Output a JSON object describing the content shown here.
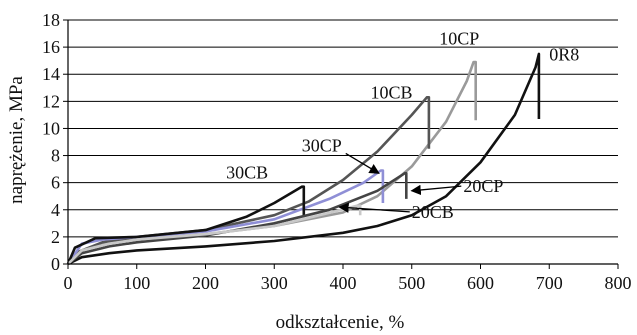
{
  "chart_data": {
    "type": "line",
    "xlabel": "odkształcenie, %",
    "ylabel": "naprężenie, MPa",
    "xlim": [
      0,
      800
    ],
    "ylim": [
      0,
      18
    ],
    "xticks": [
      0,
      100,
      200,
      300,
      400,
      500,
      600,
      700,
      800
    ],
    "yticks": [
      0,
      2,
      4,
      6,
      8,
      10,
      12,
      14,
      16,
      18
    ],
    "grid": "horizontal",
    "series": [
      {
        "name": "0R8",
        "color": "#111111",
        "points": [
          [
            0,
            0
          ],
          [
            20,
            0.5
          ],
          [
            60,
            0.8
          ],
          [
            100,
            1.0
          ],
          [
            200,
            1.3
          ],
          [
            300,
            1.7
          ],
          [
            400,
            2.3
          ],
          [
            450,
            2.8
          ],
          [
            500,
            3.6
          ],
          [
            550,
            5.0
          ],
          [
            600,
            7.5
          ],
          [
            650,
            11.0
          ],
          [
            680,
            14.5
          ],
          [
            685,
            15.5
          ],
          [
            685,
            10.7
          ]
        ]
      },
      {
        "name": "10CP",
        "color": "#9a9a9a",
        "points": [
          [
            0,
            0
          ],
          [
            15,
            0.9
          ],
          [
            50,
            1.5
          ],
          [
            100,
            1.8
          ],
          [
            200,
            2.2
          ],
          [
            300,
            2.8
          ],
          [
            400,
            3.8
          ],
          [
            450,
            5.0
          ],
          [
            500,
            7.2
          ],
          [
            550,
            10.5
          ],
          [
            580,
            13.5
          ],
          [
            590,
            14.9
          ],
          [
            593,
            14.9
          ],
          [
            593,
            10.6
          ]
        ]
      },
      {
        "name": "10CB",
        "color": "#555555",
        "points": [
          [
            0,
            0
          ],
          [
            15,
            0.9
          ],
          [
            50,
            1.6
          ],
          [
            100,
            2.0
          ],
          [
            200,
            2.5
          ],
          [
            300,
            3.6
          ],
          [
            350,
            4.6
          ],
          [
            400,
            6.2
          ],
          [
            450,
            8.3
          ],
          [
            500,
            11.0
          ],
          [
            522,
            12.3
          ],
          [
            525,
            12.3
          ],
          [
            525,
            8.5
          ]
        ]
      },
      {
        "name": "30CP",
        "color": "#8f8fd6",
        "points": [
          [
            0,
            0
          ],
          [
            20,
            1.5
          ],
          [
            50,
            1.8
          ],
          [
            100,
            2.0
          ],
          [
            200,
            2.4
          ],
          [
            300,
            3.3
          ],
          [
            380,
            4.8
          ],
          [
            430,
            6.0
          ],
          [
            455,
            6.9
          ],
          [
            458,
            6.9
          ],
          [
            458,
            4.5
          ]
        ]
      },
      {
        "name": "30CB",
        "color": "#111111",
        "points": [
          [
            0,
            0
          ],
          [
            10,
            1.2
          ],
          [
            40,
            1.9
          ],
          [
            100,
            2.0
          ],
          [
            200,
            2.5
          ],
          [
            260,
            3.5
          ],
          [
            300,
            4.5
          ],
          [
            340,
            5.7
          ],
          [
            343,
            5.7
          ],
          [
            343,
            3.6
          ]
        ]
      },
      {
        "name": "20CP",
        "color": "#444444",
        "points": [
          [
            0,
            0
          ],
          [
            20,
            0.8
          ],
          [
            60,
            1.3
          ],
          [
            100,
            1.6
          ],
          [
            200,
            2.1
          ],
          [
            300,
            3.0
          ],
          [
            380,
            4.0
          ],
          [
            450,
            5.4
          ],
          [
            490,
            6.7
          ],
          [
            492,
            6.7
          ],
          [
            492,
            4.8
          ]
        ]
      },
      {
        "name": "20CB",
        "color": "#c8c8c8",
        "points": [
          [
            0,
            0
          ],
          [
            20,
            1.0
          ],
          [
            60,
            1.5
          ],
          [
            100,
            1.8
          ],
          [
            200,
            2.2
          ],
          [
            300,
            2.8
          ],
          [
            350,
            3.4
          ],
          [
            390,
            3.9
          ],
          [
            420,
            4.3
          ],
          [
            425,
            4.3
          ],
          [
            425,
            3.6
          ]
        ]
      }
    ],
    "annotations": [
      {
        "series": "0R8",
        "text": "0R8",
        "x": 700,
        "y": 15.0,
        "arrow": false
      },
      {
        "series": "10CP",
        "text": "10CP",
        "x": 540,
        "y": 16.2,
        "arrow": false
      },
      {
        "series": "10CB",
        "text": "10CB",
        "x": 440,
        "y": 12.2,
        "arrow": false
      },
      {
        "series": "30CP",
        "text": "30CP",
        "x": 340,
        "y": 8.3,
        "arrow": true,
        "to": [
          452,
          6.7
        ]
      },
      {
        "series": "30CB",
        "text": "30CB",
        "x": 230,
        "y": 6.3,
        "arrow": false
      },
      {
        "series": "20CP",
        "text": "20CP",
        "x": 575,
        "y": 5.3,
        "arrow": true,
        "to": [
          500,
          5.4
        ]
      },
      {
        "series": "20CB",
        "text": "20CB",
        "x": 500,
        "y": 3.4,
        "arrow": true,
        "to": [
          395,
          4.2
        ]
      }
    ]
  }
}
